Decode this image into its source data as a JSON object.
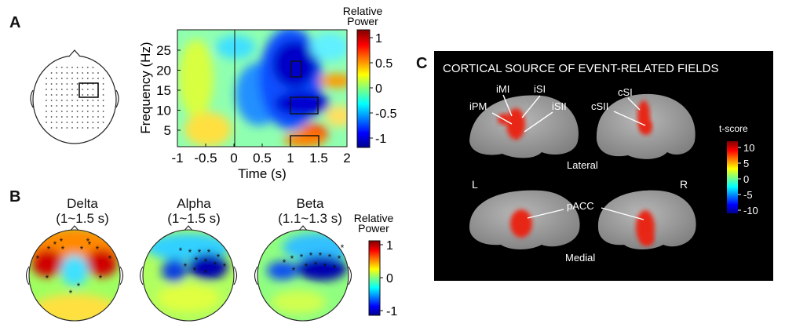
{
  "panels": {
    "A": {
      "letter": "A",
      "tf": {
        "y_label": "Frequency (Hz)",
        "x_label": "Time (s)",
        "x_ticks": [
          "-1",
          "-0.5",
          "0",
          "0.5",
          "1",
          "1.5",
          "2"
        ],
        "y_ticks": [
          "25",
          "20",
          "15",
          "10",
          "5"
        ],
        "cb_title": [
          "Relative",
          "Power"
        ],
        "cb_ticks": [
          "1",
          "0.5",
          "0",
          "-0.5",
          "-1"
        ]
      }
    },
    "B": {
      "letter": "B",
      "maps": [
        {
          "name": "Delta",
          "range": "(1~1.5 s)"
        },
        {
          "name": "Alpha",
          "range": "(1~1.5 s)"
        },
        {
          "name": "Beta",
          "range": "(1.1~1.3 s)"
        }
      ],
      "cb_title": [
        "Relative",
        "Power"
      ],
      "cb_ticks": [
        "1",
        "0",
        "-1"
      ]
    },
    "C": {
      "letter": "C",
      "title": "CORTICAL SOURCE OF EVENT-RELATED FIELDS",
      "labels": [
        "iPM",
        "iMI",
        "iSI",
        "iSII",
        "cSI",
        "cSII",
        "pACC",
        "Lateral",
        "Medial",
        "L",
        "R"
      ],
      "cb_title": "t-score",
      "cb_ticks": [
        "10",
        "5",
        "0",
        "-5",
        "-10"
      ]
    }
  },
  "colors": {
    "jet_low": "#0a0a8c",
    "jet_high": "#a00000",
    "panel_c_bg": "#000000",
    "brain": "#9a9a9a",
    "activation": "#e23020"
  }
}
